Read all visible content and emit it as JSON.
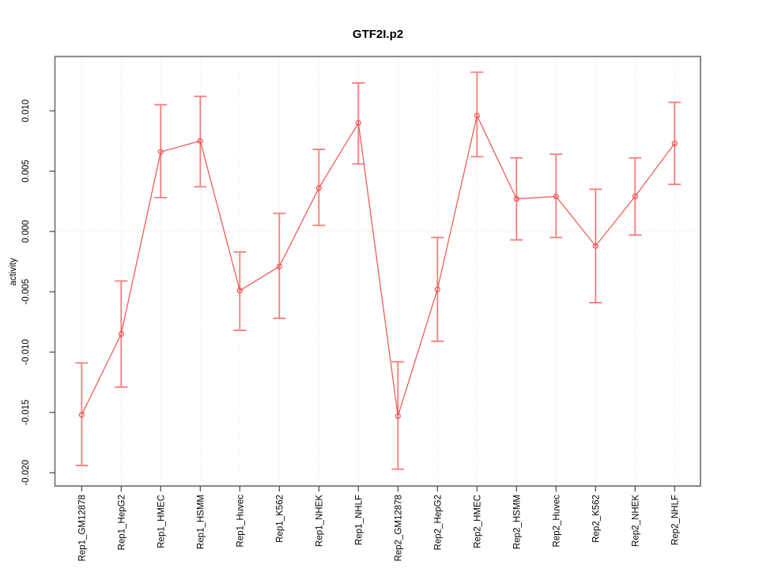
{
  "page": {
    "background": "#ffffff"
  },
  "chart_data": {
    "type": "line",
    "title": "GTF2I.p2",
    "xlabel": "",
    "ylabel": "activity",
    "legend_position": "none",
    "grid": {
      "vertical": "dotted line at each category",
      "zero_line": "dotted horizontal line at y=0"
    },
    "categories": [
      "Rep1_GM12878",
      "Rep1_HepG2",
      "Rep1_HMEC",
      "Rep1_HSMM",
      "Rep1_Huvec",
      "Rep1_K562",
      "Rep1_NHEK",
      "Rep1_NHLF",
      "Rep2_GM12878",
      "Rep2_HepG2",
      "Rep2_HMEC",
      "Rep2_HSMM",
      "Rep2_Huvec",
      "Rep2_K562",
      "Rep2_NHEK",
      "Rep2_NHLF"
    ],
    "series": [
      {
        "name": "GTF2I.p2 activity",
        "marker": "open-circle",
        "values": [
          -0.0152,
          -0.0085,
          0.0066,
          0.0075,
          -0.0049,
          -0.0029,
          0.0036,
          0.009,
          -0.0153,
          -0.0048,
          0.0096,
          0.0027,
          0.0029,
          -0.0012,
          0.0029,
          0.0073
        ],
        "error_low": [
          -0.0194,
          -0.0129,
          0.0028,
          0.0037,
          -0.0082,
          -0.0072,
          0.0005,
          0.0056,
          -0.0197,
          -0.0091,
          0.0062,
          -0.0007,
          -0.0005,
          -0.0059,
          -0.0003,
          0.0039
        ],
        "error_high": [
          -0.0109,
          -0.0041,
          0.0105,
          0.0112,
          -0.0017,
          0.0015,
          0.0068,
          0.0123,
          -0.0108,
          -0.0005,
          0.0132,
          0.0061,
          0.0064,
          0.0035,
          0.0061,
          0.0107
        ]
      }
    ],
    "ytick_values": [
      0.01,
      0.005,
      0.0,
      -0.005,
      -0.01,
      -0.015,
      -0.02
    ],
    "ytick_labels": [
      "0.010",
      "0.005",
      "0.000",
      "-0.005",
      "-0.010",
      "-0.015",
      "-0.020"
    ],
    "ylim": [
      -0.0211,
      0.0145
    ],
    "colors": {
      "series": "#f0524f",
      "error_bar": "#f37e7c",
      "grid": "#dcdcdc",
      "box": "#7a7a7a",
      "tick": "#444444",
      "text": "#000000"
    }
  }
}
